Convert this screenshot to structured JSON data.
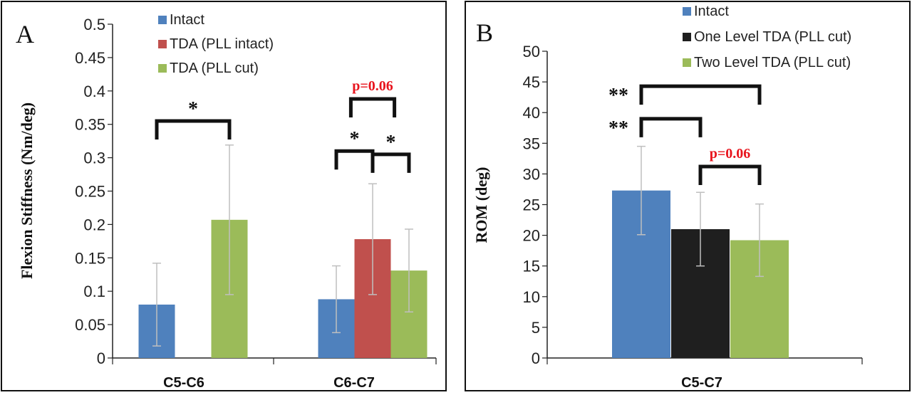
{
  "chart_data": [
    {
      "type": "bar",
      "panel_label": "A",
      "ylabel": "Flexion Stiffness (Nm/deg)",
      "ylim": [
        0,
        0.5
      ],
      "yticks": [
        "0",
        "0.05",
        "0.1",
        "0.15",
        "0.2",
        "0.25",
        "0.3",
        "0.35",
        "0.4",
        "0.45",
        "0.5"
      ],
      "yticks_values": [
        0,
        0.05,
        0.1,
        0.15,
        0.2,
        0.25,
        0.3,
        0.35,
        0.4,
        0.45,
        0.5
      ],
      "categories": [
        "C5-C6",
        "C6-C7"
      ],
      "legend_position": "top",
      "series": [
        {
          "name": "Intact",
          "color": "#4f81bd",
          "values": [
            0.08,
            0.088
          ],
          "errors": [
            0.062,
            0.05
          ]
        },
        {
          "name": "TDA  (PLL intact)",
          "color": "#c0504d",
          "values": [
            null,
            0.178
          ],
          "errors": [
            null,
            0.083
          ]
        },
        {
          "name": "TDA  (PLL cut)",
          "color": "#9bbb59",
          "values": [
            0.207,
            0.131
          ],
          "errors": [
            0.112,
            0.062
          ]
        }
      ],
      "annotations": [
        {
          "text": "*",
          "category": 0,
          "from_series": 0,
          "to_series": 2,
          "y": 0.355,
          "color": "#111111"
        },
        {
          "text": "*",
          "category": 1,
          "from_series": 0,
          "to_series": 1,
          "y": 0.31,
          "color": "#111111"
        },
        {
          "text": "*",
          "category": 1,
          "from_series": 1,
          "to_series": 2,
          "y": 0.305,
          "color": "#111111"
        },
        {
          "text": "p=0.06",
          "category": 1,
          "from_series": 0.4,
          "to_series": 1.6,
          "y": 0.388,
          "color": "#e8141d"
        }
      ]
    },
    {
      "type": "bar",
      "panel_label": "B",
      "ylabel": "ROM (deg)",
      "ylim": [
        0,
        50
      ],
      "yticks": [
        "0",
        "5",
        "10",
        "15",
        "20",
        "25",
        "30",
        "35",
        "40",
        "45",
        "50"
      ],
      "yticks_values": [
        0,
        5,
        10,
        15,
        20,
        25,
        30,
        35,
        40,
        45,
        50
      ],
      "categories": [
        "C5-C7"
      ],
      "legend_position": "top",
      "series": [
        {
          "name": "Intact",
          "color": "#4f81bd",
          "values": [
            27.3
          ],
          "errors": [
            7.2
          ]
        },
        {
          "name": "One Level TDA  (PLL cut)",
          "color": "#1f1f1f",
          "values": [
            21.0
          ],
          "errors": [
            6.0
          ]
        },
        {
          "name": "Two Level TDA  (PLL cut)",
          "color": "#9bbb59",
          "values": [
            19.2
          ],
          "errors": [
            5.9
          ]
        }
      ],
      "annotations": [
        {
          "text": "**",
          "category": 0,
          "from_series": 0,
          "to_series": 2,
          "y": 44.3,
          "color": "#111111"
        },
        {
          "text": "**",
          "category": 0,
          "from_series": 0,
          "to_series": 1,
          "y": 39.0,
          "color": "#111111"
        },
        {
          "text": "p=0.06",
          "category": 0,
          "from_series": 1,
          "to_series": 2,
          "y": 31.2,
          "color": "#e8141d"
        }
      ]
    }
  ]
}
